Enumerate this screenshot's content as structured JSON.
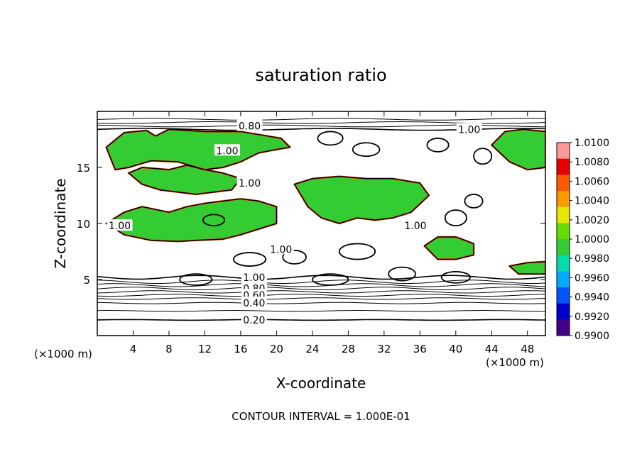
{
  "chart_data": {
    "type": "contour",
    "title": "saturation ratio",
    "xlabel": "X-coordinate",
    "ylabel": "Z-coordinate",
    "x_unit_label_left": "(×1000 m)",
    "x_unit_label_right": "(×1000 m)",
    "xlim": [
      0,
      50
    ],
    "ylim": [
      0,
      20
    ],
    "x_ticks": [
      4,
      8,
      12,
      16,
      20,
      24,
      28,
      32,
      36,
      40,
      44,
      48
    ],
    "y_ticks": [
      5,
      10,
      15
    ],
    "contour_interval_text": "CONTOUR INTERVAL = 1.000E-01",
    "contour_labels": [
      {
        "text": "0.80",
        "x": 17.0,
        "y": 18.7
      },
      {
        "text": "1.00",
        "x": 41.5,
        "y": 18.4
      },
      {
        "text": "1.00",
        "x": 14.5,
        "y": 16.5
      },
      {
        "text": "1.00",
        "x": 17.0,
        "y": 13.6
      },
      {
        "text": "1.00",
        "x": 2.5,
        "y": 9.8
      },
      {
        "text": "1.00",
        "x": 35.5,
        "y": 9.8
      },
      {
        "text": "1.00",
        "x": 20.5,
        "y": 7.7
      },
      {
        "text": "1.00",
        "x": 17.5,
        "y": 5.2
      },
      {
        "text": "0.80",
        "x": 17.5,
        "y": 4.2
      },
      {
        "text": "0.60",
        "x": 17.5,
        "y": 3.6
      },
      {
        "text": "0.40",
        "x": 17.5,
        "y": 2.9
      },
      {
        "text": "0.20",
        "x": 17.5,
        "y": 1.4
      }
    ],
    "colorbar": {
      "min": 0.99,
      "max": 1.01,
      "labels": [
        "1.0100",
        "1.0080",
        "1.0060",
        "1.0040",
        "1.0020",
        "1.0000",
        "0.9980",
        "0.9960",
        "0.9940",
        "0.9920",
        "0.9900"
      ],
      "colors": [
        "#ff9999",
        "#e60000",
        "#ff5a00",
        "#ff9900",
        "#e6e600",
        "#66dd00",
        "#33cc33",
        "#00ddaa",
        "#00aaff",
        "#0055ff",
        "#0000cc",
        "#440088"
      ]
    },
    "green_regions_note": "",
    "regions": [
      {
        "x": [
          1.0,
          3.0,
          5.5,
          6.5,
          8.0,
          12.0,
          16.0,
          20.5,
          21.5,
          20.0,
          18.0,
          16.0,
          14.0,
          12.0,
          9.0,
          6.0,
          3.5,
          2.0,
          1.0
        ],
        "y": [
          16.8,
          18.1,
          18.3,
          17.8,
          18.4,
          18.2,
          18.2,
          17.6,
          16.8,
          16.6,
          16.3,
          15.5,
          15.0,
          14.8,
          15.5,
          15.6,
          15.0,
          14.8,
          16.8
        ],
        "fill": "#33cc33"
      },
      {
        "x": [
          3.5,
          5.0,
          8.0,
          10.0,
          12.0,
          14.0,
          16.0,
          15.0,
          13.0,
          11.0,
          9.0,
          7.0,
          5.0,
          3.5
        ],
        "y": [
          14.5,
          15.0,
          14.8,
          15.2,
          14.8,
          14.5,
          14.0,
          13.0,
          12.8,
          12.6,
          12.8,
          13.0,
          13.5,
          14.5
        ],
        "fill": "#33cc33"
      },
      {
        "x": [
          22.0,
          24.0,
          27.0,
          30.0,
          33.0,
          36.0,
          37.0,
          35.0,
          33.0,
          31.0,
          29.0,
          27.0,
          25.0,
          23.5,
          22.0
        ],
        "y": [
          13.5,
          14.0,
          14.2,
          14.0,
          14.0,
          13.6,
          12.5,
          11.0,
          10.5,
          10.3,
          10.5,
          10.0,
          10.5,
          11.5,
          13.5
        ],
        "fill": "#33cc33"
      },
      {
        "x": [
          1.0,
          3.0,
          5.0,
          8.0,
          10.0,
          12.0,
          14.0,
          16.0,
          18.0,
          20.0,
          20.0,
          18.0,
          16.0,
          14.0,
          11.0,
          9.0,
          6.0,
          3.0,
          1.0
        ],
        "y": [
          10.0,
          11.0,
          11.5,
          11.0,
          11.5,
          11.8,
          12.0,
          12.2,
          12.0,
          11.5,
          10.0,
          9.5,
          9.0,
          8.6,
          8.5,
          8.4,
          8.5,
          9.0,
          10.0
        ],
        "fill": "#33cc33"
      },
      {
        "x": [
          36.5,
          38.0,
          40.0,
          42.0,
          42.0,
          40.0,
          38.0,
          36.5
        ],
        "y": [
          8.0,
          8.8,
          8.8,
          8.2,
          7.2,
          6.8,
          6.8,
          8.0
        ],
        "fill": "#33cc33"
      },
      {
        "x": [
          44.0,
          45.5,
          47.5,
          50.0,
          50.0,
          48.0,
          46.0,
          44.0
        ],
        "y": [
          17.0,
          18.2,
          18.4,
          18.2,
          15.0,
          14.8,
          15.5,
          17.0
        ],
        "fill": "#33cc33"
      },
      {
        "x": [
          46.0,
          48.0,
          50.0,
          50.0,
          47.0,
          46.0
        ],
        "y": [
          6.2,
          6.5,
          6.6,
          5.5,
          5.5,
          6.2
        ],
        "fill": "#33cc33"
      }
    ]
  }
}
